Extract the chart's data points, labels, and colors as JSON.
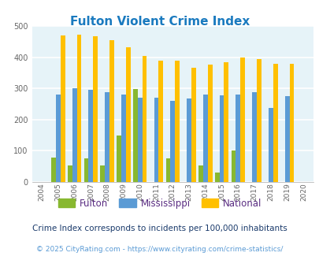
{
  "title": "Fulton Violent Crime Index",
  "years": [
    2004,
    2005,
    2006,
    2007,
    2008,
    2009,
    2010,
    2011,
    2012,
    2013,
    2014,
    2015,
    2016,
    2017,
    2018,
    2019,
    2020
  ],
  "fulton": [
    0,
    78,
    52,
    77,
    52,
    150,
    298,
    0,
    77,
    0,
    52,
    30,
    100,
    0,
    0,
    0,
    0
  ],
  "mississippi": [
    0,
    280,
    300,
    295,
    287,
    280,
    270,
    270,
    260,
    267,
    280,
    277,
    280,
    287,
    237,
    275,
    0
  ],
  "national": [
    0,
    470,
    473,
    467,
    455,
    432,
    405,
    388,
    388,
    367,
    377,
    384,
    398,
    394,
    380,
    380,
    0
  ],
  "fulton_color": "#88b830",
  "mississippi_color": "#5b9bd5",
  "national_color": "#ffc000",
  "bg_color": "#ddeef5",
  "plot_bg": "#e6f3f8",
  "ylim": [
    0,
    500
  ],
  "yticks": [
    0,
    100,
    200,
    300,
    400,
    500
  ],
  "title_color": "#1a7abf",
  "legend_text_color": "#5a2d82",
  "footer_note": "Crime Index corresponds to incidents per 100,000 inhabitants",
  "copyright": "© 2025 CityRating.com - https://www.cityrating.com/crime-statistics/",
  "bar_width": 0.28
}
